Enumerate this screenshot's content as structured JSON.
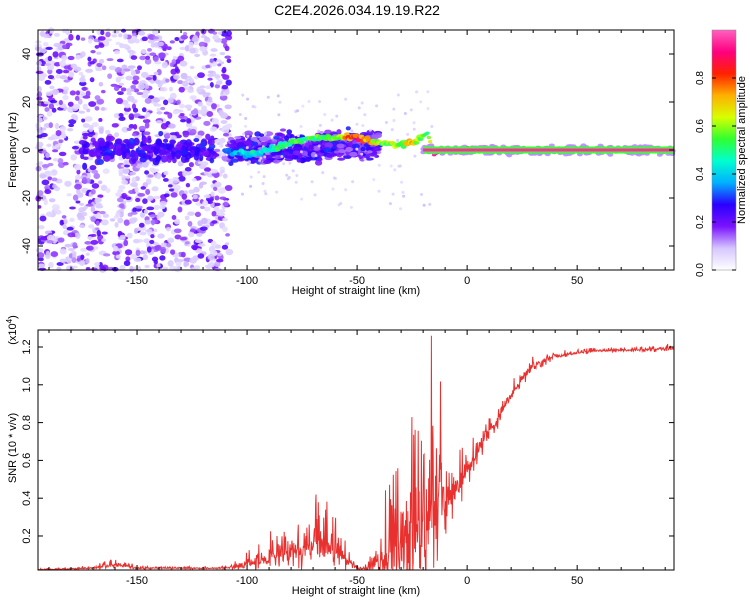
{
  "title": "C2E4.2026.034.19.19.R22",
  "colors": {
    "snr_line": "#e8312f",
    "axis": "#000000",
    "background": "#ffffff"
  },
  "chart_data": [
    {
      "type": "heatmap",
      "name": "spectrogram",
      "xlabel": "Height of straight line (km)",
      "ylabel": "Frequency (Hz)",
      "xlim": [
        -195,
        94
      ],
      "ylim": [
        -50,
        50
      ],
      "xticks": [
        -150,
        -100,
        -50,
        0,
        50
      ],
      "xtick_labels": [
        "-150",
        "-100",
        "-50",
        "0",
        "50"
      ],
      "yticks": [
        -40,
        -20,
        0,
        20,
        40
      ],
      "ytick_labels": [
        "-40",
        "-20",
        "0",
        "20",
        "40"
      ],
      "colorbar": {
        "label": "Normalized spectral amplitude",
        "range": [
          0,
          1
        ],
        "ticks": [
          0.0,
          0.2,
          0.4,
          0.6,
          0.8
        ],
        "tick_labels": [
          "0.0",
          "0.2",
          "0.4",
          "0.6",
          "0.8"
        ],
        "stops": [
          "#ffffff",
          "#d6c6ff",
          "#7a12ff",
          "#2a00ff",
          "#00b0ff",
          "#00ffd0",
          "#30ff30",
          "#d8ff00",
          "#ffb000",
          "#ff2000",
          "#ff0080",
          "#ff60c0"
        ]
      },
      "regions": [
        {
          "desc": "broadband noise",
          "x_range": [
            -195,
            -108
          ],
          "y_range": [
            -50,
            50
          ],
          "amplitude": 0.15
        },
        {
          "desc": "diffuse cloud",
          "x_range": [
            -108,
            -40
          ],
          "y_range": [
            -10,
            10
          ],
          "amplitude": 0.2
        },
        {
          "desc": "narrow carrier",
          "x_range": [
            -20,
            94
          ],
          "y_range": [
            -1,
            1
          ],
          "amplitude": 0.95
        }
      ],
      "ridge": [
        {
          "x": -110,
          "y": 0,
          "a": 0.3
        },
        {
          "x": -100,
          "y": -2,
          "a": 0.45
        },
        {
          "x": -90,
          "y": 0,
          "a": 0.5
        },
        {
          "x": -80,
          "y": 3,
          "a": 0.55
        },
        {
          "x": -70,
          "y": 5,
          "a": 0.55
        },
        {
          "x": -60,
          "y": 5,
          "a": 0.6
        },
        {
          "x": -50,
          "y": 5,
          "a": 0.9
        },
        {
          "x": -40,
          "y": 3,
          "a": 0.6
        },
        {
          "x": -32,
          "y": 2,
          "a": 0.6
        },
        {
          "x": -25,
          "y": 3,
          "a": 0.7
        },
        {
          "x": -18,
          "y": 7,
          "a": 0.5
        },
        {
          "x": -15,
          "y": -2,
          "a": 0.9
        },
        {
          "x": -10,
          "y": 1,
          "a": 0.85
        },
        {
          "x": -5,
          "y": -1,
          "a": 0.9
        },
        {
          "x": 0,
          "y": 1,
          "a": 0.9
        },
        {
          "x": 10,
          "y": 0,
          "a": 0.9
        },
        {
          "x": 50,
          "y": 0,
          "a": 0.95
        },
        {
          "x": 94,
          "y": 0,
          "a": 0.95
        }
      ]
    },
    {
      "type": "line",
      "name": "snr",
      "xlabel": "Height of straight line (km)",
      "ylabel": "SNR (10 * v/v)",
      "scale_label": "(x10",
      "scale_exp": "4",
      "scale_close": ")",
      "xlim": [
        -195,
        94
      ],
      "ylim": [
        0.02,
        1.29
      ],
      "xticks": [
        -150,
        -100,
        -50,
        0,
        50
      ],
      "xtick_labels": [
        "-150",
        "-100",
        "-50",
        "0",
        "50"
      ],
      "yticks": [
        0.2,
        0.4,
        0.6,
        0.8,
        1.0,
        1.2
      ],
      "ytick_labels": [
        "0.2",
        "0.4",
        "0.6",
        "0.8",
        "1.0",
        "1.2"
      ],
      "envelope": {
        "x": [
          -195,
          -170,
          -160,
          -150,
          -110,
          -100,
          -95,
          -85,
          -75,
          -65,
          -60,
          -55,
          -50,
          -45,
          -40,
          -35,
          -30,
          -25,
          -20,
          -15,
          -10,
          -5,
          0,
          10,
          20,
          30,
          40,
          50,
          60,
          94
        ],
        "base": [
          0.02,
          0.03,
          0.05,
          0.03,
          0.03,
          0.05,
          0.07,
          0.1,
          0.14,
          0.16,
          0.14,
          0.07,
          0.03,
          0.03,
          0.08,
          0.12,
          0.15,
          0.2,
          0.25,
          0.32,
          0.4,
          0.45,
          0.55,
          0.75,
          0.95,
          1.1,
          1.15,
          1.17,
          1.18,
          1.19
        ],
        "spread": [
          0.005,
          0.01,
          0.04,
          0.01,
          0.01,
          0.05,
          0.1,
          0.18,
          0.22,
          0.26,
          0.25,
          0.08,
          0.02,
          0.05,
          0.25,
          0.45,
          0.55,
          0.7,
          0.95,
          0.75,
          0.4,
          0.25,
          0.18,
          0.1,
          0.08,
          0.05,
          0.03,
          0.02,
          0.02,
          0.02
        ]
      }
    }
  ]
}
